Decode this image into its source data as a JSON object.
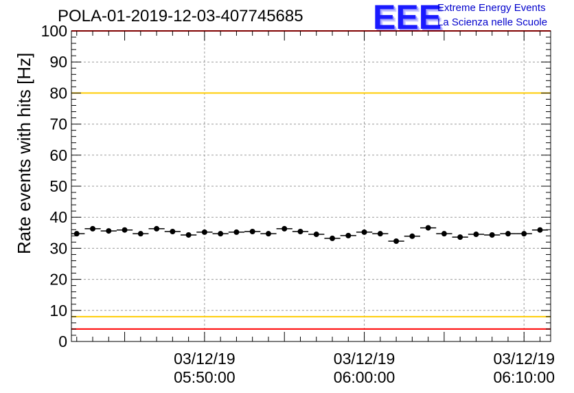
{
  "chart_data": {
    "type": "scatter",
    "title": "POLA-01-2019-12-03-407745685",
    "ylabel": "Rate events with hits [Hz]",
    "xlabel": "",
    "ylim": [
      0,
      100
    ],
    "yticks": [
      0,
      10,
      20,
      30,
      40,
      50,
      60,
      70,
      80,
      90,
      100
    ],
    "xlim": [
      "2019-12-03 05:41:40",
      "2019-12-03 06:11:40"
    ],
    "xticks": [
      {
        "time": "2019-12-03 05:50:00",
        "date_label": "03/12/19",
        "time_label": "05:50:00"
      },
      {
        "time": "2019-12-03 06:00:00",
        "date_label": "03/12/19",
        "time_label": "06:00:00"
      },
      {
        "time": "2019-12-03 06:10:00",
        "date_label": "03/12/19",
        "time_label": "06:10:00"
      }
    ],
    "grid": true,
    "bin_width_seconds": 60,
    "x": [
      "2019-12-03 05:42:00",
      "2019-12-03 05:43:00",
      "2019-12-03 05:44:00",
      "2019-12-03 05:45:00",
      "2019-12-03 05:46:00",
      "2019-12-03 05:47:00",
      "2019-12-03 05:48:00",
      "2019-12-03 05:49:00",
      "2019-12-03 05:50:00",
      "2019-12-03 05:51:00",
      "2019-12-03 05:52:00",
      "2019-12-03 05:53:00",
      "2019-12-03 05:54:00",
      "2019-12-03 05:55:00",
      "2019-12-03 05:56:00",
      "2019-12-03 05:57:00",
      "2019-12-03 05:58:00",
      "2019-12-03 05:59:00",
      "2019-12-03 06:00:00",
      "2019-12-03 06:01:00",
      "2019-12-03 06:02:00",
      "2019-12-03 06:03:00",
      "2019-12-03 06:04:00",
      "2019-12-03 06:05:00",
      "2019-12-03 06:06:00",
      "2019-12-03 06:07:00",
      "2019-12-03 06:08:00",
      "2019-12-03 06:09:00",
      "2019-12-03 06:10:00",
      "2019-12-03 06:11:00"
    ],
    "values": [
      34.7,
      36.3,
      35.6,
      35.9,
      34.7,
      36.3,
      35.4,
      34.3,
      35.2,
      34.7,
      35.2,
      35.4,
      34.7,
      36.3,
      35.4,
      34.5,
      33.2,
      34.1,
      35.2,
      34.7,
      32.3,
      33.9,
      36.6,
      34.7,
      33.6,
      34.5,
      34.3,
      34.7,
      34.7,
      35.9
    ],
    "reference_lines": [
      {
        "y": 100,
        "color": "#ff0000"
      },
      {
        "y": 80,
        "color": "#ffcc00"
      },
      {
        "y": 8,
        "color": "#ffcc00"
      },
      {
        "y": 4,
        "color": "#ff0000"
      }
    ],
    "marker_color": "#000000"
  },
  "logo": {
    "mark": "EEE",
    "line1": "Extreme Energy Events",
    "line2": "La Scienza nelle Scuole",
    "color": "#0000cc"
  }
}
